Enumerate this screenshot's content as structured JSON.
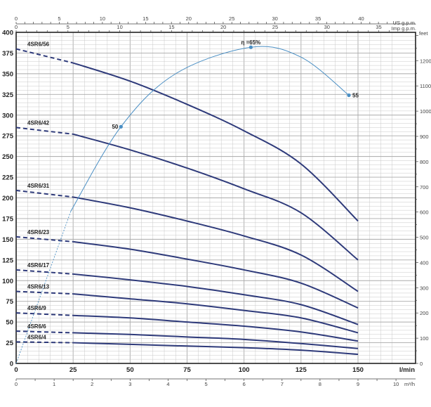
{
  "chart_data": {
    "type": "line",
    "x_axis": {
      "label": "l/min",
      "range": [
        0,
        168
      ],
      "ticks": [
        0,
        25,
        50,
        75,
        100,
        125,
        150
      ]
    },
    "y_axis": {
      "range": [
        0,
        400
      ],
      "ticks": [
        0,
        25,
        50,
        75,
        100,
        125,
        150,
        175,
        200,
        225,
        250,
        275,
        300,
        325,
        350,
        375,
        400
      ]
    },
    "y_axis_right": {
      "label": "feet",
      "ticks": [
        0,
        100,
        200,
        300,
        400,
        500,
        600,
        700,
        800,
        900,
        1000,
        1100,
        1200
      ]
    },
    "x_axis_top_1": {
      "label": "US g.p.m.",
      "ticks": [
        0,
        5,
        10,
        15,
        20,
        25,
        30,
        35,
        40
      ]
    },
    "x_axis_top_2": {
      "label": "Imp g.p.m.",
      "ticks": [
        0,
        5,
        10,
        15,
        20,
        25,
        30,
        35
      ]
    },
    "x_axis_bottom_2": {
      "label": "m³/h",
      "ticks": [
        0,
        1,
        2,
        3,
        4,
        5,
        6,
        7,
        8,
        9,
        10
      ]
    },
    "grid": true,
    "colors": {
      "curve": "#2e3a7a",
      "efficiency": "#4a8fc4",
      "axis": "#222222",
      "grid": "#c8c8c8"
    },
    "x": [
      0,
      25,
      50,
      75,
      100,
      125,
      150
    ],
    "dashed_until": 25,
    "series": [
      {
        "name": "4SR6/56",
        "values": [
          380,
          363,
          341,
          313,
          281,
          241,
          172
        ]
      },
      {
        "name": "4SR6/42",
        "values": [
          285,
          277,
          258,
          236,
          211,
          182,
          125
        ]
      },
      {
        "name": "4SR6/31",
        "values": [
          209,
          201,
          188,
          172,
          154,
          131,
          87
        ]
      },
      {
        "name": "4SR6/23",
        "values": [
          153,
          147,
          138,
          126,
          113,
          97,
          67
        ]
      },
      {
        "name": "4SR6/17",
        "values": [
          113,
          108,
          101,
          93,
          83,
          71,
          47
        ]
      },
      {
        "name": "4SR6/13",
        "values": [
          87,
          84,
          78,
          72,
          64,
          55,
          37
        ]
      },
      {
        "name": "4SR6/9",
        "values": [
          61,
          58,
          55,
          50,
          45,
          38,
          27
        ]
      },
      {
        "name": "4SR6/6",
        "values": [
          39,
          37,
          35,
          32,
          29,
          24,
          18
        ]
      },
      {
        "name": "4SR6/4",
        "values": [
          26,
          25,
          23,
          21,
          19,
          16,
          11
        ]
      }
    ],
    "efficiency_curve": {
      "points": [
        [
          0,
          0
        ],
        [
          24,
          184
        ],
        [
          46,
          286
        ],
        [
          70,
          350
        ],
        [
          103,
          382
        ],
        [
          125,
          370
        ],
        [
          146,
          324
        ]
      ],
      "dashed_until": 24,
      "markers": [
        {
          "label": "50",
          "x": 46,
          "y": 286
        },
        {
          "label": "η =65%",
          "x": 103,
          "y": 382
        },
        {
          "label": "55",
          "x": 146,
          "y": 324
        }
      ]
    }
  }
}
